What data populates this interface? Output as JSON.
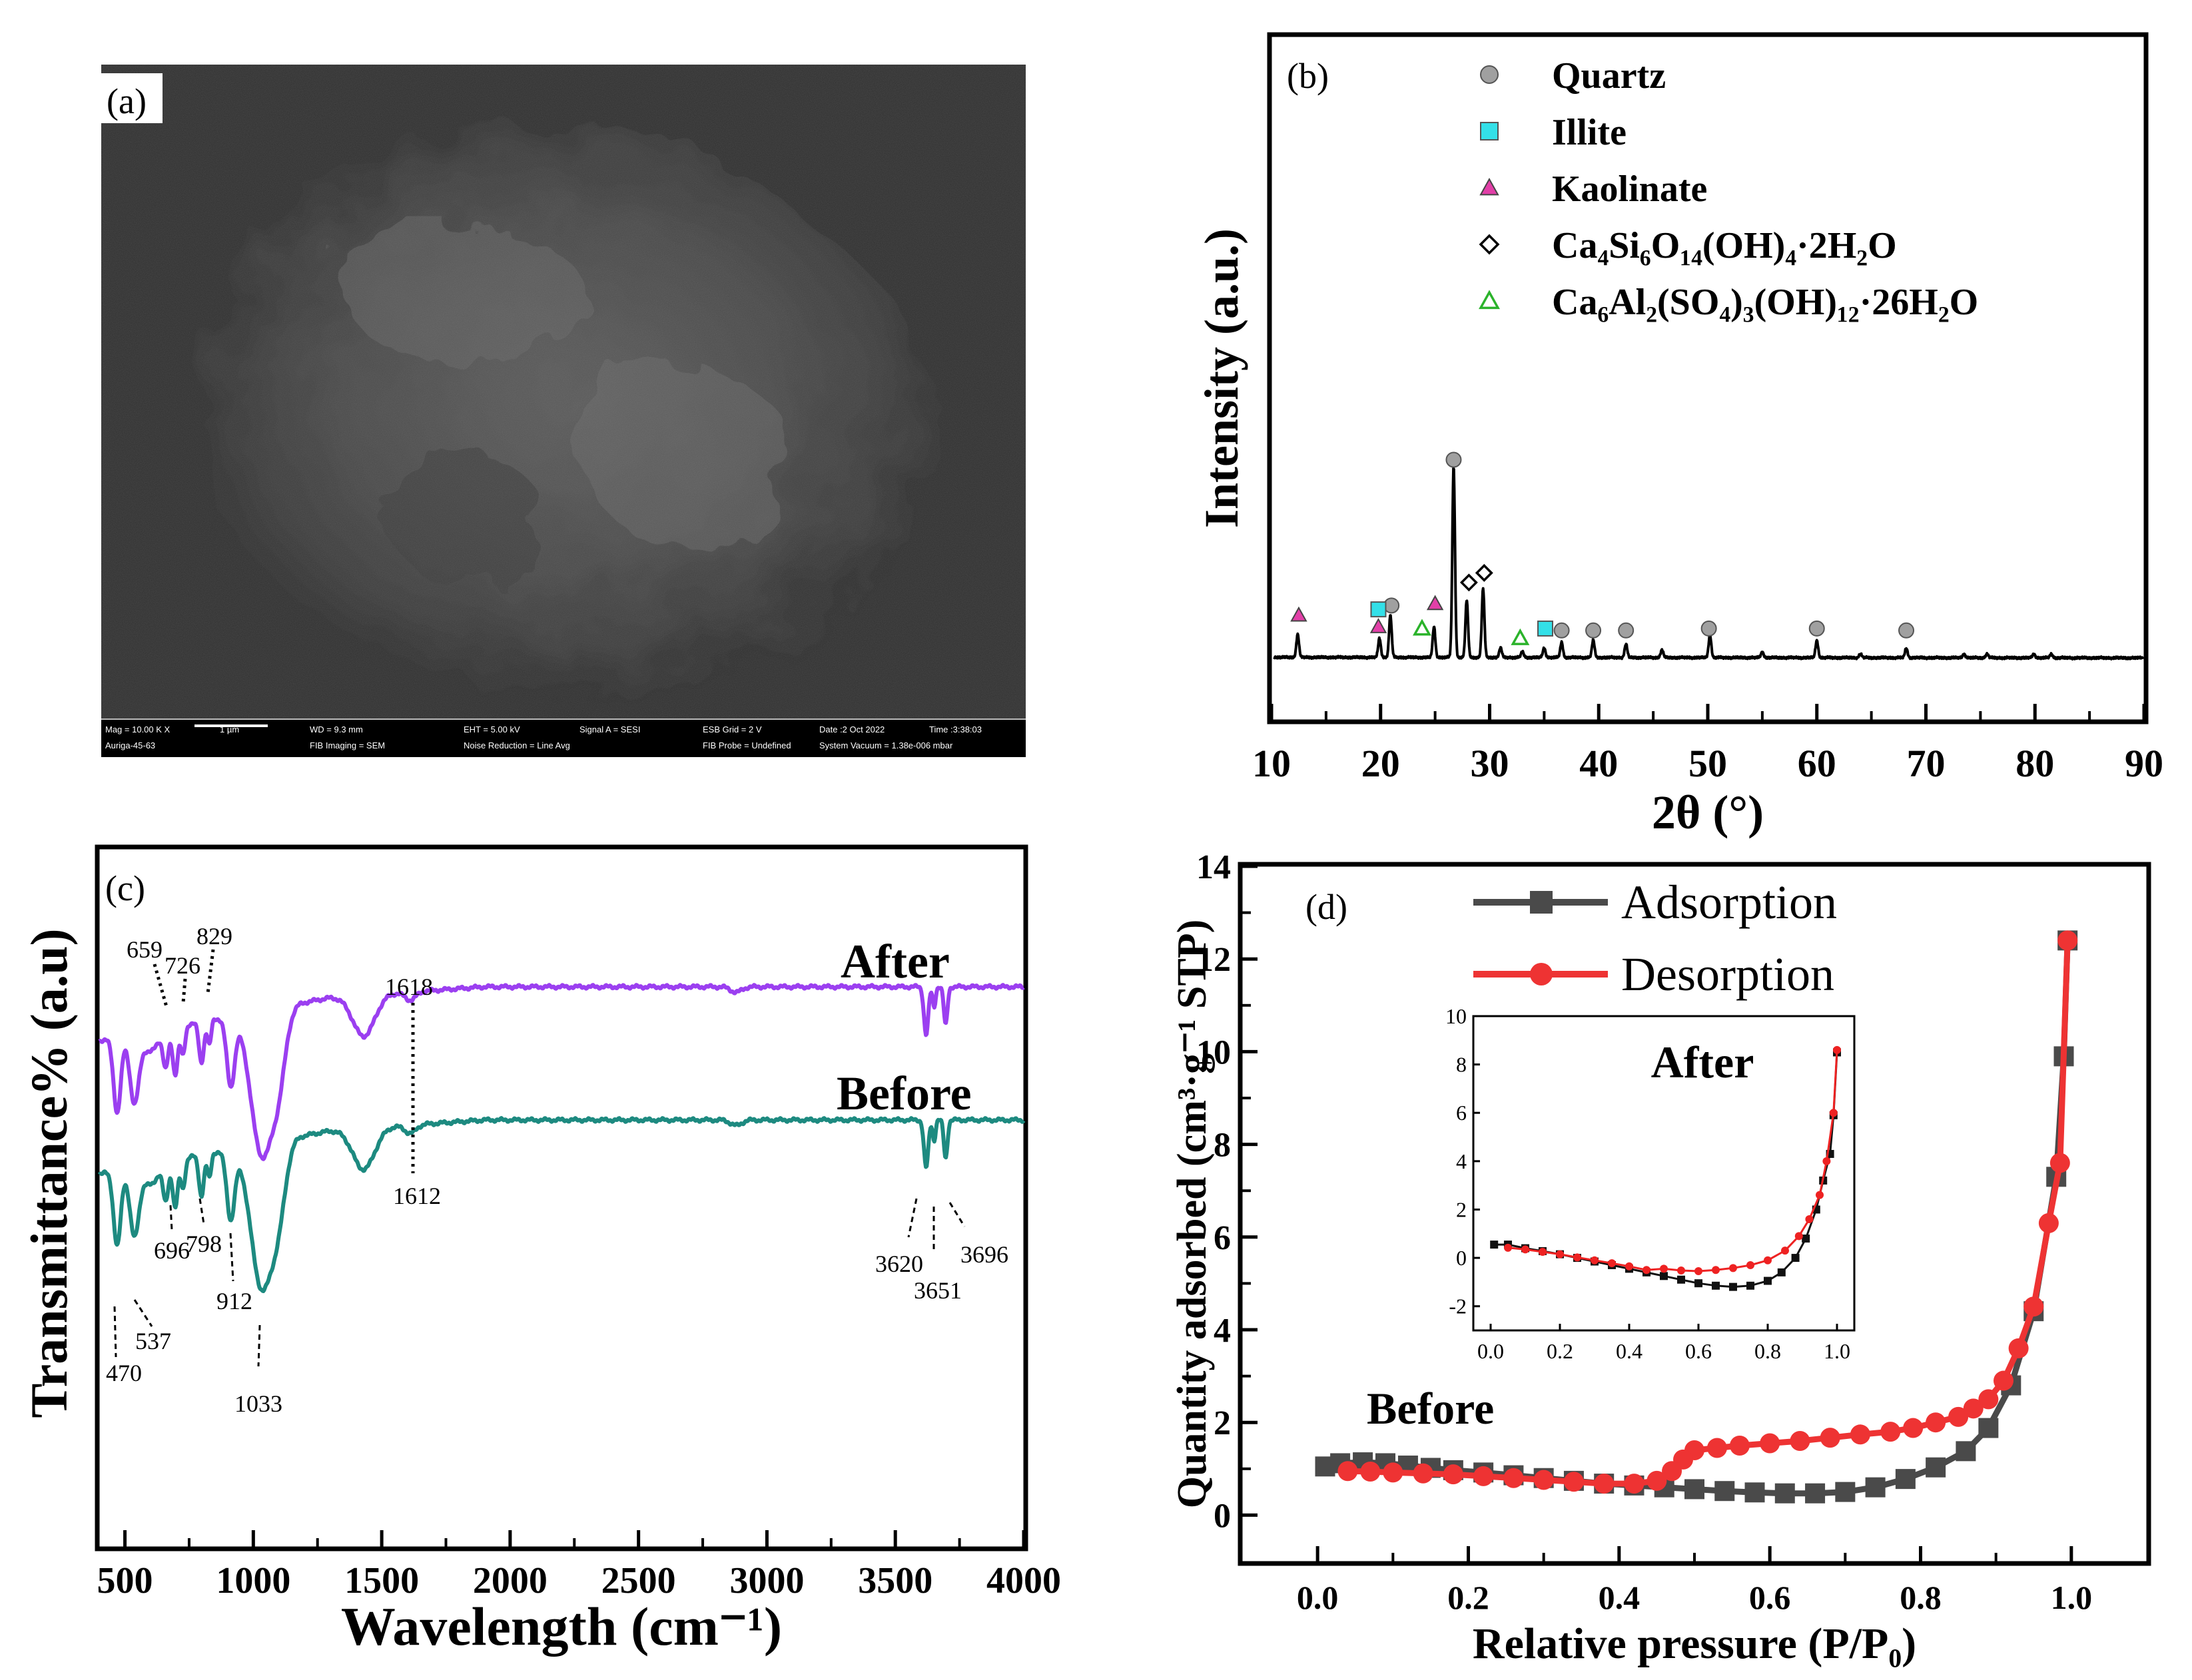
{
  "figure_labels": {
    "a": "(a)",
    "b": "(b)",
    "c": "(c)",
    "d": "(d)"
  },
  "sem": {
    "info_row1": [
      "Mag = 10.00 K X",
      "1 µm",
      "WD = 9.3 mm",
      "EHT = 5.00 kV",
      "Signal A = SESI",
      "ESB Grid = 2 V",
      "Date :2 Oct 2022",
      "Time :3:38:03"
    ],
    "info_row2": [
      "Auriga-45-63",
      "FIB Imaging = SEM",
      "Noise Reduction = Line Avg",
      "FIB Probe = Undefined",
      "System Vacuum = 1.38e-006 mbar"
    ]
  },
  "chart_data": [
    {
      "id": "b",
      "type": "line",
      "title": "",
      "xlabel": "2θ (°)",
      "ylabel": "Intensity (a.u.)",
      "xlim": [
        10,
        90
      ],
      "xticks": [
        10,
        20,
        30,
        40,
        50,
        60,
        70,
        80,
        90
      ],
      "legend": [
        {
          "name": "Quartz",
          "marker": "circle",
          "color": "#a0a0a0"
        },
        {
          "name": "Illite",
          "marker": "square",
          "color": "#33e0e8"
        },
        {
          "name": "Kaolinate",
          "marker": "triangle",
          "color": "#e23fa8"
        },
        {
          "name": "Ca₄Si₆O₁₄(OH)₄·2H₂O",
          "marker": "diamond-open",
          "color": "#000000"
        },
        {
          "name": "Ca₆Al₂(SO₄)₃(OH)₁₂·26H₂O",
          "marker": "triangle-open",
          "color": "#2bb32b"
        }
      ],
      "peaks": [
        {
          "x": 12.4,
          "h": 12
        },
        {
          "x": 19.9,
          "h": 10
        },
        {
          "x": 20.9,
          "h": 22
        },
        {
          "x": 24.9,
          "h": 16
        },
        {
          "x": 26.7,
          "h": 100
        },
        {
          "x": 27.9,
          "h": 30
        },
        {
          "x": 29.4,
          "h": 36
        },
        {
          "x": 31.0,
          "h": 5
        },
        {
          "x": 33.0,
          "h": 3
        },
        {
          "x": 35.0,
          "h": 5
        },
        {
          "x": 36.6,
          "h": 8
        },
        {
          "x": 39.5,
          "h": 9
        },
        {
          "x": 42.5,
          "h": 7
        },
        {
          "x": 45.8,
          "h": 4
        },
        {
          "x": 50.2,
          "h": 12
        },
        {
          "x": 55.0,
          "h": 3
        },
        {
          "x": 60.0,
          "h": 9
        },
        {
          "x": 64.0,
          "h": 2
        },
        {
          "x": 68.2,
          "h": 5
        },
        {
          "x": 73.5,
          "h": 2
        },
        {
          "x": 75.6,
          "h": 2
        },
        {
          "x": 79.9,
          "h": 2
        },
        {
          "x": 81.5,
          "h": 2
        }
      ],
      "markers": [
        {
          "phase": "Quartz",
          "x": 21.0,
          "y": 28
        },
        {
          "phase": "Quartz",
          "x": 26.7,
          "y": 104
        },
        {
          "phase": "Quartz",
          "x": 36.6,
          "y": 15
        },
        {
          "phase": "Quartz",
          "x": 39.5,
          "y": 15
        },
        {
          "phase": "Quartz",
          "x": 42.5,
          "y": 15
        },
        {
          "phase": "Quartz",
          "x": 50.1,
          "y": 16
        },
        {
          "phase": "Quartz",
          "x": 60.0,
          "y": 16
        },
        {
          "phase": "Quartz",
          "x": 68.2,
          "y": 15
        },
        {
          "phase": "Illite",
          "x": 19.8,
          "y": 26
        },
        {
          "phase": "Illite",
          "x": 35.1,
          "y": 16
        },
        {
          "phase": "Kaolinate",
          "x": 12.5,
          "y": 23
        },
        {
          "phase": "Kaolinate",
          "x": 19.8,
          "y": 17
        },
        {
          "phase": "Kaolinate",
          "x": 25.0,
          "y": 29
        },
        {
          "phase": "Ca₄Si₆O₁₄(OH)₄·2H₂O",
          "x": 28.1,
          "y": 40
        },
        {
          "phase": "Ca₄Si₆O₁₄(OH)₄·2H₂O",
          "x": 29.5,
          "y": 45
        },
        {
          "phase": "Ca₆Al₂(SO₄)₃(OH)₁₂·26H₂O",
          "x": 23.8,
          "y": 16
        },
        {
          "phase": "Ca₆Al₂(SO₄)₃(OH)₁₂·26H₂O",
          "x": 32.8,
          "y": 11
        }
      ]
    },
    {
      "id": "c",
      "type": "line",
      "title": "",
      "xlabel": "Wavelength (cm⁻¹)",
      "ylabel": "Transmittance% (a.u)",
      "xlim": [
        400,
        4000
      ],
      "xticks": [
        500,
        1000,
        1500,
        2000,
        2500,
        3000,
        3500,
        4000
      ],
      "series": [
        {
          "name": "After",
          "color": "#9b3ff0"
        },
        {
          "name": "Before",
          "color": "#1d8a80"
        }
      ],
      "bands": [
        {
          "x": 470,
          "d": 0.55,
          "w": 20
        },
        {
          "x": 537,
          "d": 0.5,
          "w": 25
        },
        {
          "x": 600,
          "d": 0.15,
          "w": 40
        },
        {
          "x": 659,
          "d": 0.28,
          "w": 15
        },
        {
          "x": 696,
          "d": 0.35,
          "w": 14
        },
        {
          "x": 726,
          "d": 0.22,
          "w": 12
        },
        {
          "x": 798,
          "d": 0.3,
          "w": 14
        },
        {
          "x": 829,
          "d": 0.18,
          "w": 10
        },
        {
          "x": 912,
          "d": 0.5,
          "w": 22
        },
        {
          "x": 1033,
          "d": 1.05,
          "w": 60
        },
        {
          "x": 1100,
          "d": 0.4,
          "w": 40
        },
        {
          "x": 1430,
          "d": 0.3,
          "w": 60
        },
        {
          "x": 1612,
          "d": 0.06,
          "w": 30
        },
        {
          "x": 2880,
          "d": 0.04,
          "w": 30
        },
        {
          "x": 3620,
          "d": 0.35,
          "w": 12
        },
        {
          "x": 3651,
          "d": 0.15,
          "w": 8
        },
        {
          "x": 3696,
          "d": 0.28,
          "w": 10
        }
      ],
      "annotations_after": [
        "659",
        "726",
        "829",
        "1618"
      ],
      "annotations_before": [
        "470",
        "537",
        "696",
        "798",
        "912",
        "1033",
        "1612",
        "3620",
        "3651",
        "3696"
      ]
    },
    {
      "id": "d",
      "type": "line",
      "title": "",
      "xlabel": "Relative pressure (P/P₀)",
      "ylabel": "Quantity adsorbed (cm³·g⁻¹ STP)",
      "xlim": [
        -0.1,
        1.1
      ],
      "ylim": [
        -1,
        14
      ],
      "xticks": [
        0.0,
        0.2,
        0.4,
        0.6,
        0.8,
        1.0
      ],
      "yticks": [
        0,
        2,
        4,
        6,
        8,
        10,
        12,
        14
      ],
      "annotation": "Before",
      "series": [
        {
          "name": "Adsorption",
          "color": "#4a4a4a",
          "marker": "square",
          "points": [
            [
              0.01,
              1.05
            ],
            [
              0.03,
              1.12
            ],
            [
              0.06,
              1.14
            ],
            [
              0.09,
              1.12
            ],
            [
              0.12,
              1.07
            ],
            [
              0.15,
              1.02
            ],
            [
              0.18,
              0.97
            ],
            [
              0.22,
              0.92
            ],
            [
              0.26,
              0.86
            ],
            [
              0.3,
              0.8
            ],
            [
              0.34,
              0.74
            ],
            [
              0.38,
              0.68
            ],
            [
              0.42,
              0.64
            ],
            [
              0.46,
              0.6
            ],
            [
              0.5,
              0.56
            ],
            [
              0.54,
              0.52
            ],
            [
              0.58,
              0.49
            ],
            [
              0.62,
              0.47
            ],
            [
              0.66,
              0.47
            ],
            [
              0.7,
              0.5
            ],
            [
              0.74,
              0.6
            ],
            [
              0.78,
              0.78
            ],
            [
              0.82,
              1.03
            ],
            [
              0.86,
              1.38
            ],
            [
              0.89,
              1.88
            ],
            [
              0.92,
              2.8
            ],
            [
              0.95,
              4.4
            ],
            [
              0.98,
              7.3
            ],
            [
              0.99,
              9.9
            ],
            [
              0.995,
              12.4
            ]
          ]
        },
        {
          "name": "Desorption",
          "color": "#ee3333",
          "marker": "circle",
          "points": [
            [
              0.995,
              12.4
            ],
            [
              0.985,
              7.6
            ],
            [
              0.97,
              6.3
            ],
            [
              0.95,
              4.5
            ],
            [
              0.93,
              3.6
            ],
            [
              0.91,
              2.9
            ],
            [
              0.89,
              2.5
            ],
            [
              0.87,
              2.3
            ],
            [
              0.85,
              2.12
            ],
            [
              0.82,
              2.0
            ],
            [
              0.79,
              1.88
            ],
            [
              0.76,
              1.8
            ],
            [
              0.72,
              1.74
            ],
            [
              0.68,
              1.67
            ],
            [
              0.64,
              1.6
            ],
            [
              0.6,
              1.55
            ],
            [
              0.56,
              1.5
            ],
            [
              0.53,
              1.45
            ],
            [
              0.5,
              1.4
            ],
            [
              0.485,
              1.2
            ],
            [
              0.47,
              0.95
            ],
            [
              0.45,
              0.74
            ],
            [
              0.42,
              0.68
            ],
            [
              0.38,
              0.68
            ],
            [
              0.34,
              0.72
            ],
            [
              0.3,
              0.76
            ],
            [
              0.26,
              0.8
            ],
            [
              0.22,
              0.84
            ],
            [
              0.18,
              0.88
            ],
            [
              0.14,
              0.9
            ],
            [
              0.1,
              0.92
            ],
            [
              0.07,
              0.94
            ],
            [
              0.04,
              0.95
            ]
          ]
        }
      ],
      "inset": {
        "title": "After",
        "xlim": [
          -0.05,
          1.05
        ],
        "ylim": [
          -3,
          10
        ],
        "xticks": [
          0.0,
          0.2,
          0.4,
          0.6,
          0.8,
          1.0
        ],
        "yticks": [
          -2,
          0,
          2,
          4,
          6,
          8,
          10
        ],
        "series": [
          {
            "name": "Adsorption",
            "color": "#111111",
            "marker": "square",
            "points": [
              [
                0.01,
                0.55
              ],
              [
                0.05,
                0.55
              ],
              [
                0.1,
                0.4
              ],
              [
                0.15,
                0.28
              ],
              [
                0.2,
                0.15
              ],
              [
                0.25,
                0.0
              ],
              [
                0.3,
                -0.15
              ],
              [
                0.35,
                -0.3
              ],
              [
                0.4,
                -0.45
              ],
              [
                0.45,
                -0.6
              ],
              [
                0.5,
                -0.75
              ],
              [
                0.55,
                -0.9
              ],
              [
                0.6,
                -1.05
              ],
              [
                0.65,
                -1.15
              ],
              [
                0.7,
                -1.2
              ],
              [
                0.75,
                -1.15
              ],
              [
                0.8,
                -0.95
              ],
              [
                0.84,
                -0.6
              ],
              [
                0.88,
                0.0
              ],
              [
                0.91,
                0.8
              ],
              [
                0.94,
                2.0
              ],
              [
                0.96,
                3.2
              ],
              [
                0.98,
                4.3
              ],
              [
                0.99,
                5.9
              ],
              [
                1.0,
                8.5
              ]
            ]
          },
          {
            "name": "Desorption",
            "color": "#ee2222",
            "marker": "circle",
            "points": [
              [
                1.0,
                8.6
              ],
              [
                0.99,
                6.0
              ],
              [
                0.97,
                4.0
              ],
              [
                0.95,
                2.6
              ],
              [
                0.92,
                1.6
              ],
              [
                0.89,
                0.9
              ],
              [
                0.85,
                0.3
              ],
              [
                0.8,
                -0.1
              ],
              [
                0.75,
                -0.3
              ],
              [
                0.7,
                -0.42
              ],
              [
                0.65,
                -0.5
              ],
              [
                0.6,
                -0.55
              ],
              [
                0.55,
                -0.52
              ],
              [
                0.5,
                -0.45
              ],
              [
                0.45,
                -0.5
              ],
              [
                0.4,
                -0.35
              ],
              [
                0.35,
                -0.22
              ],
              [
                0.3,
                -0.1
              ],
              [
                0.25,
                0.02
              ],
              [
                0.2,
                0.15
              ],
              [
                0.15,
                0.25
              ],
              [
                0.1,
                0.35
              ],
              [
                0.05,
                0.42
              ]
            ]
          }
        ]
      }
    }
  ]
}
